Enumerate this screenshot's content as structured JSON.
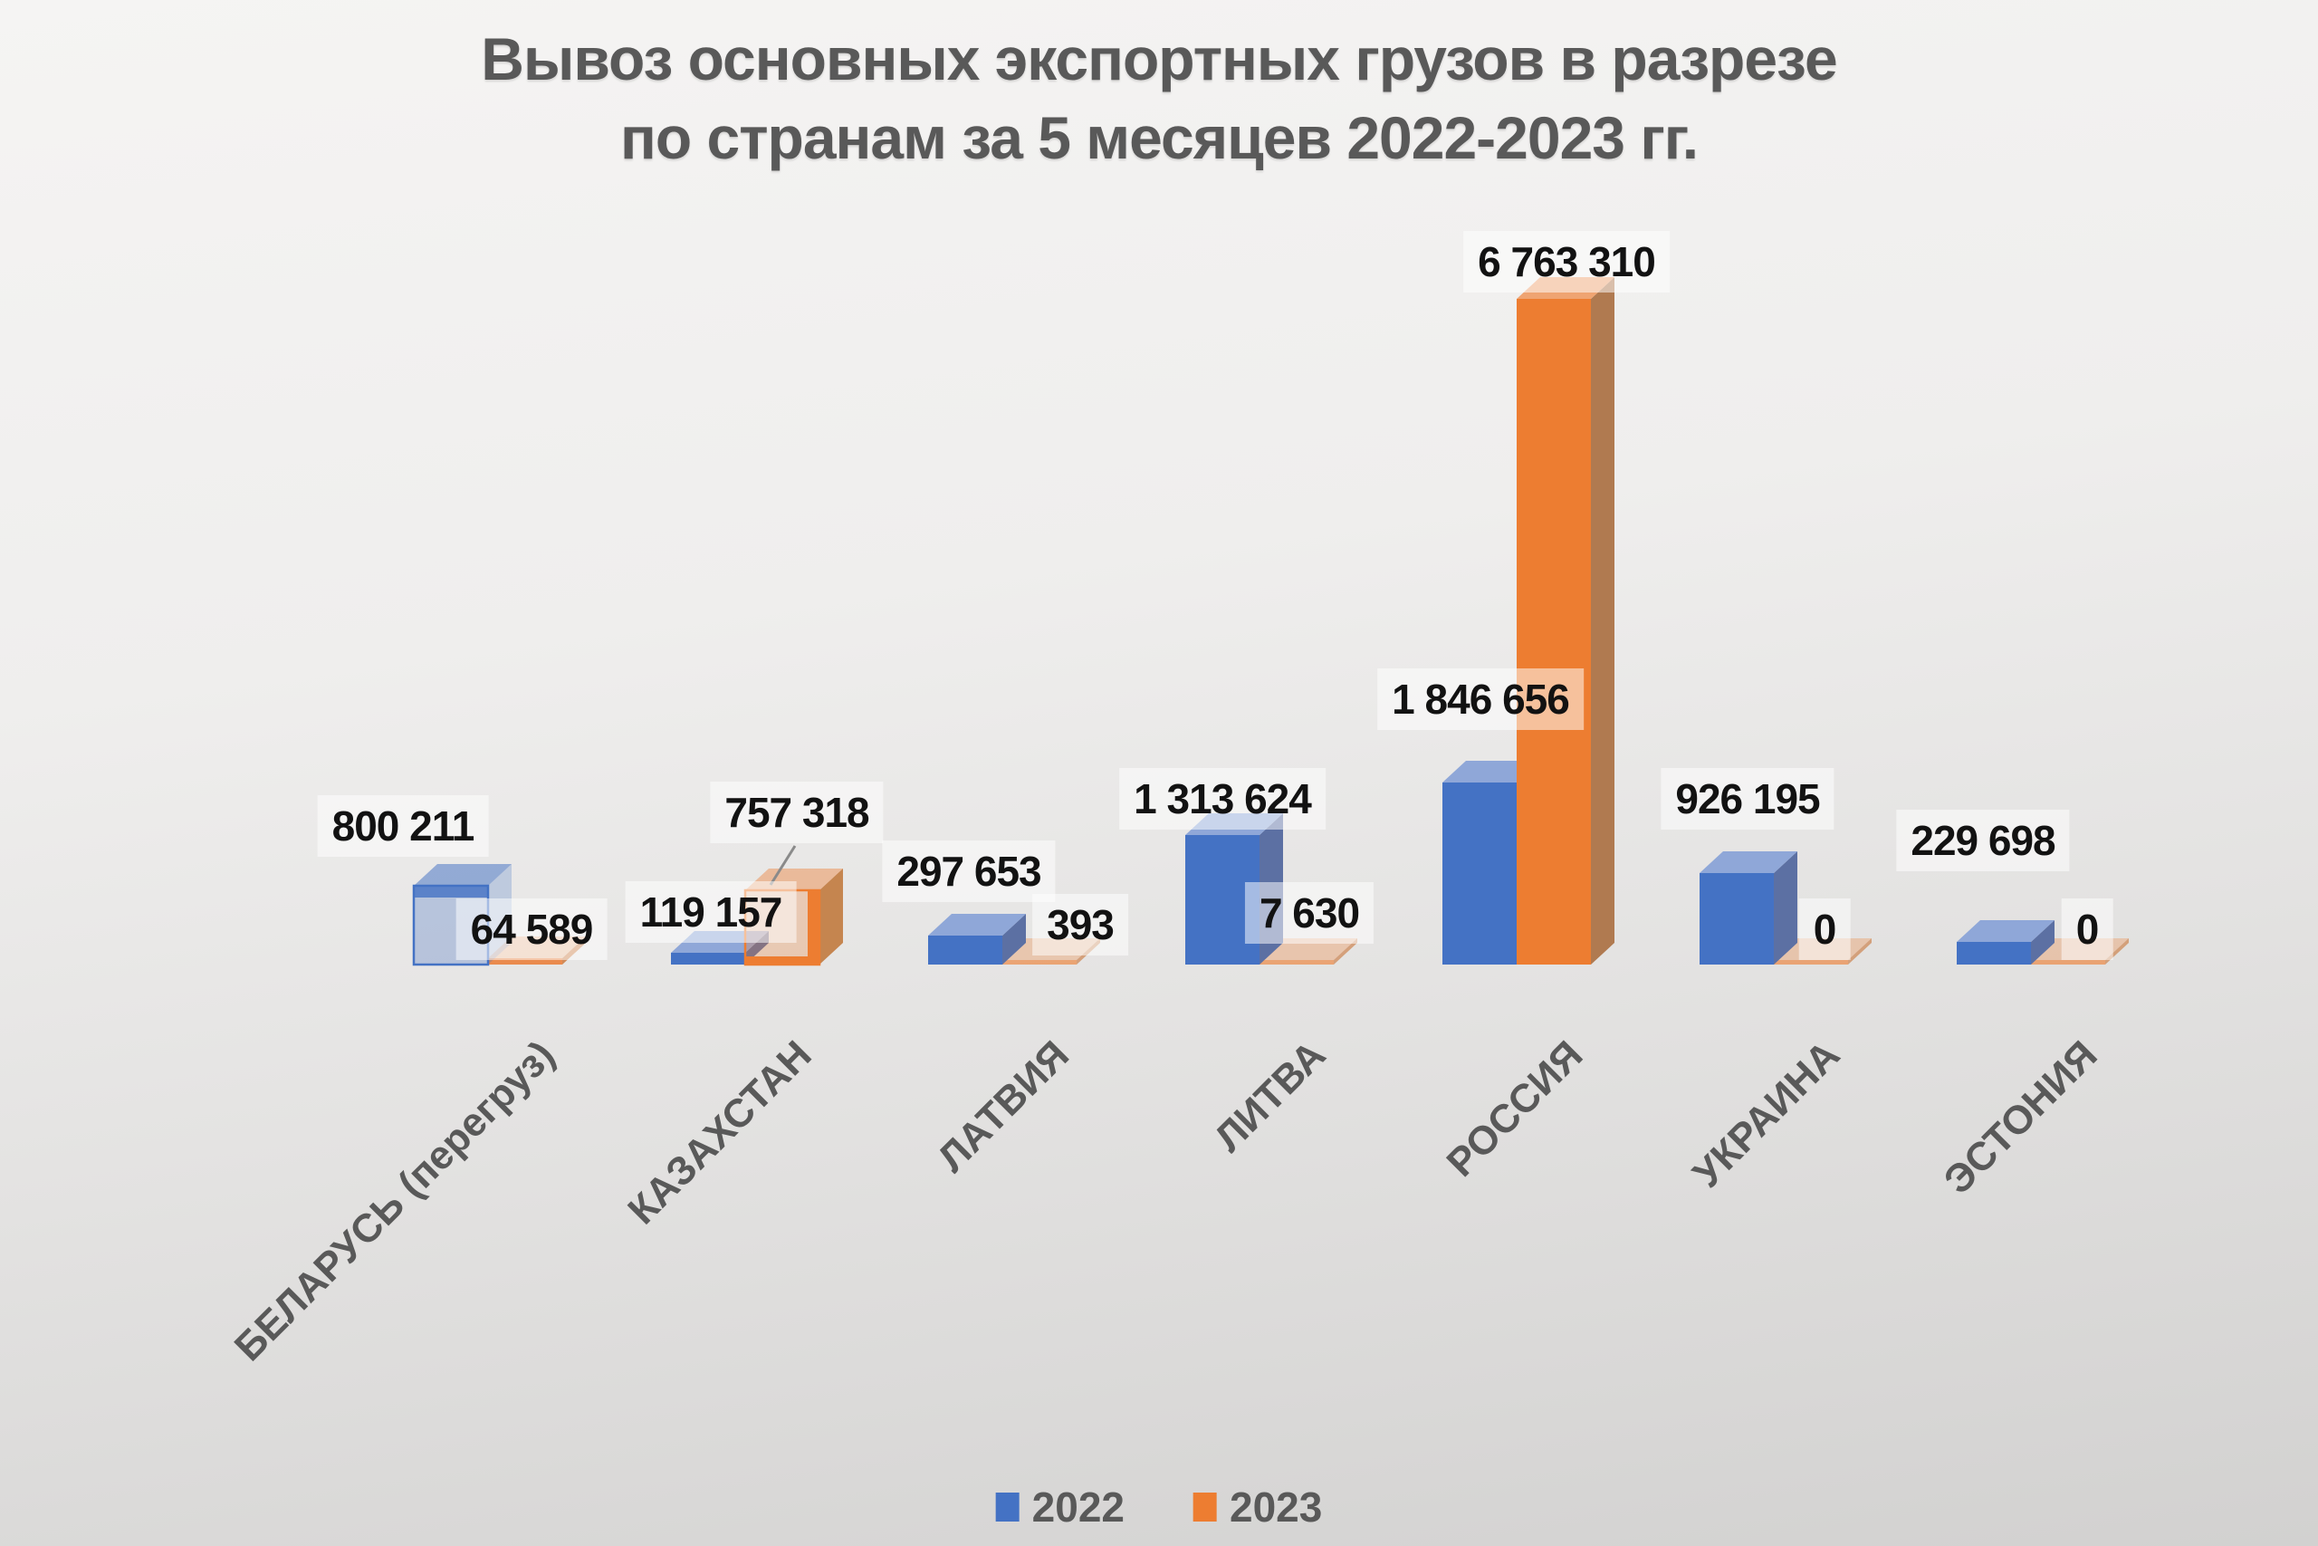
{
  "title": {
    "line1": "Вывоз основных экспортных грузов в разрезе",
    "line2": "по странам за 5 месяцев 2022-2023 гг."
  },
  "chart_data": {
    "type": "bar",
    "projection": "3d",
    "title": "Вывоз основных экспортных грузов в разрезе по странам за 5 месяцев 2022-2023 гг.",
    "categories": [
      "БЕЛАРУСЬ (перегруз)",
      "КАЗАХСТАН",
      "ЛАТВИЯ",
      "ЛИТВА",
      "РОССИЯ",
      "УКРАИНА",
      "ЭСТОНИЯ"
    ],
    "series": [
      {
        "name": "2022",
        "color": "#4472C4",
        "values": [
          800211,
          119157,
          297653,
          1313624,
          1846656,
          926195,
          229698
        ],
        "labels": [
          "800 211",
          "119 157",
          "297 653",
          "1 313 624",
          "1 846 656",
          "926 195",
          "229 698"
        ]
      },
      {
        "name": "2023",
        "color": "#ED7D31",
        "values": [
          64589,
          757318,
          393,
          7630,
          6763310,
          0,
          0
        ],
        "labels": [
          "64 589",
          "757 318",
          "393",
          "7 630",
          "6 763 310",
          "0",
          "0"
        ]
      }
    ],
    "ylim": [
      0,
      6763310
    ],
    "grid": false,
    "data_labels": true,
    "legend_position": "bottom",
    "value_label_color": "#121212",
    "text_color": "#595959"
  }
}
